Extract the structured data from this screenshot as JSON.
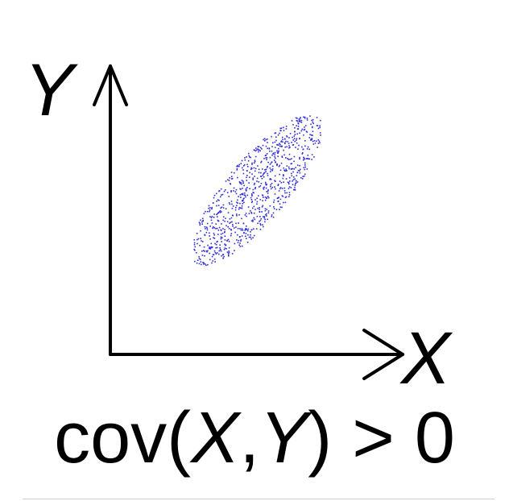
{
  "diagram": {
    "y_axis_label": "Y",
    "x_axis_label": "X",
    "caption": {
      "prefix": "cov(",
      "var_x": "X",
      "comma": ",",
      "var_y": "Y",
      "suffix": ")",
      "relation": ">",
      "value": "0"
    },
    "scatter": {
      "color": "#2f2fd8",
      "point_count": 900,
      "correlation": "positive"
    },
    "axis_color": "#000000"
  }
}
